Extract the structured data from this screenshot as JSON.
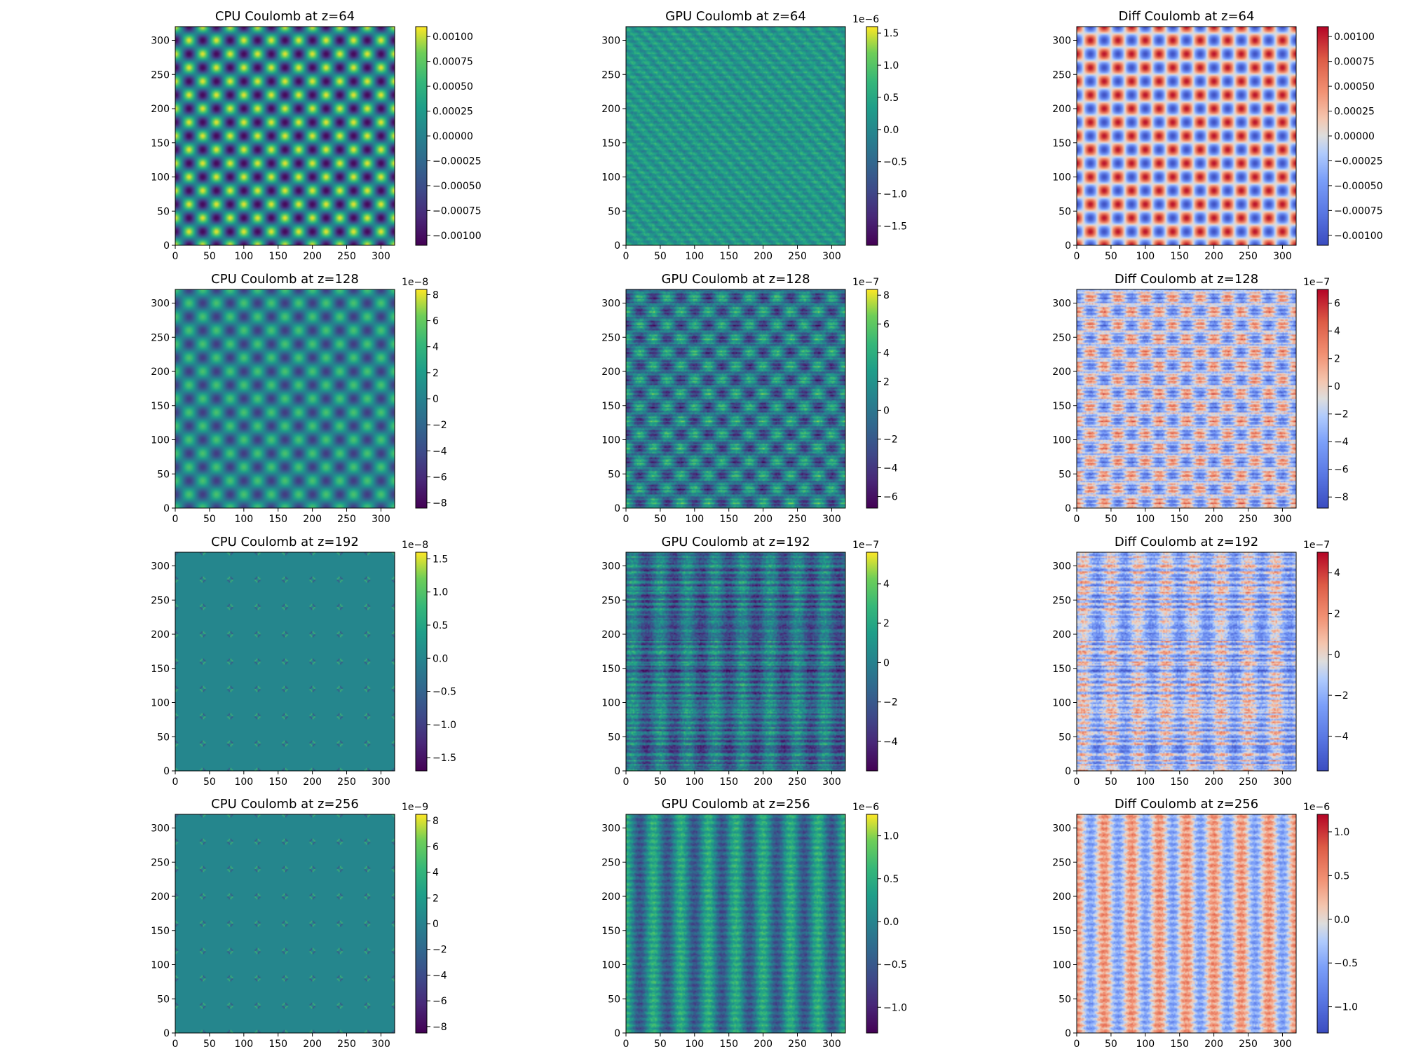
{
  "chart_data": [
    {
      "type": "heatmap",
      "title": "CPU Coulomb at z=64",
      "cmap": "viridis",
      "pattern": "cpu64",
      "xlim": [
        0,
        320
      ],
      "ylim": [
        0,
        320
      ],
      "xticks": [
        "0",
        "50",
        "100",
        "150",
        "200",
        "250",
        "300"
      ],
      "yticks": [
        "0",
        "50",
        "100",
        "150",
        "200",
        "250",
        "300"
      ],
      "colorbar": {
        "range": [
          -0.0011,
          0.0011
        ],
        "exponent_label": "",
        "ticks": [
          {
            "value": -0.001,
            "label": "−0.00100"
          },
          {
            "value": -0.00075,
            "label": "−0.00075"
          },
          {
            "value": -0.0005,
            "label": "−0.00050"
          },
          {
            "value": -0.00025,
            "label": "−0.00025"
          },
          {
            "value": 0,
            "label": "0.00000"
          },
          {
            "value": 0.00025,
            "label": "0.00025"
          },
          {
            "value": 0.0005,
            "label": "0.00050"
          },
          {
            "value": 0.00075,
            "label": "0.00075"
          },
          {
            "value": 0.001,
            "label": "0.00100"
          }
        ]
      }
    },
    {
      "type": "heatmap",
      "title": "GPU Coulomb at z=64",
      "cmap": "viridis",
      "pattern": "gpu64",
      "xlim": [
        0,
        320
      ],
      "ylim": [
        0,
        320
      ],
      "xticks": [
        "0",
        "50",
        "100",
        "150",
        "200",
        "250",
        "300"
      ],
      "yticks": [
        "0",
        "50",
        "100",
        "150",
        "200",
        "250",
        "300"
      ],
      "colorbar": {
        "range": [
          -1.8,
          1.6
        ],
        "exponent_label": "1e−6",
        "ticks": [
          {
            "value": -1.5,
            "label": "−1.5"
          },
          {
            "value": -1.0,
            "label": "−1.0"
          },
          {
            "value": -0.5,
            "label": "−0.5"
          },
          {
            "value": 0,
            "label": "0.0"
          },
          {
            "value": 0.5,
            "label": "0.5"
          },
          {
            "value": 1.0,
            "label": "1.0"
          },
          {
            "value": 1.5,
            "label": "1.5"
          }
        ]
      }
    },
    {
      "type": "heatmap",
      "title": "Diff Coulomb at z=64",
      "cmap": "coolwarm",
      "pattern": "cpu64",
      "xlim": [
        0,
        320
      ],
      "ylim": [
        0,
        320
      ],
      "xticks": [
        "0",
        "50",
        "100",
        "150",
        "200",
        "250",
        "300"
      ],
      "yticks": [
        "0",
        "50",
        "100",
        "150",
        "200",
        "250",
        "300"
      ],
      "colorbar": {
        "range": [
          -0.0011,
          0.0011
        ],
        "exponent_label": "",
        "ticks": [
          {
            "value": -0.001,
            "label": "−0.00100"
          },
          {
            "value": -0.00075,
            "label": "−0.00075"
          },
          {
            "value": -0.0005,
            "label": "−0.00050"
          },
          {
            "value": -0.00025,
            "label": "−0.00025"
          },
          {
            "value": 0,
            "label": "0.00000"
          },
          {
            "value": 0.00025,
            "label": "0.00025"
          },
          {
            "value": 0.0005,
            "label": "0.00050"
          },
          {
            "value": 0.00075,
            "label": "0.00075"
          },
          {
            "value": 0.001,
            "label": "0.00100"
          }
        ]
      }
    },
    {
      "type": "heatmap",
      "title": "CPU Coulomb at z=128",
      "cmap": "viridis",
      "pattern": "cpu128",
      "xlim": [
        0,
        320
      ],
      "ylim": [
        0,
        320
      ],
      "xticks": [
        "0",
        "50",
        "100",
        "150",
        "200",
        "250",
        "300"
      ],
      "yticks": [
        "0",
        "50",
        "100",
        "150",
        "200",
        "250",
        "300"
      ],
      "colorbar": {
        "range": [
          -8.4,
          8.4
        ],
        "exponent_label": "1e−8",
        "ticks": [
          {
            "value": -8,
            "label": "−8"
          },
          {
            "value": -6,
            "label": "−6"
          },
          {
            "value": -4,
            "label": "−4"
          },
          {
            "value": -2,
            "label": "−2"
          },
          {
            "value": 0,
            "label": "0"
          },
          {
            "value": 2,
            "label": "2"
          },
          {
            "value": 4,
            "label": "4"
          },
          {
            "value": 6,
            "label": "6"
          },
          {
            "value": 8,
            "label": "8"
          }
        ]
      }
    },
    {
      "type": "heatmap",
      "title": "GPU Coulomb at z=128",
      "cmap": "viridis",
      "pattern": "gpu128",
      "xlim": [
        0,
        320
      ],
      "ylim": [
        0,
        320
      ],
      "xticks": [
        "0",
        "50",
        "100",
        "150",
        "200",
        "250",
        "300"
      ],
      "yticks": [
        "0",
        "50",
        "100",
        "150",
        "200",
        "250",
        "300"
      ],
      "colorbar": {
        "range": [
          -6.8,
          8.4
        ],
        "exponent_label": "1e−7",
        "ticks": [
          {
            "value": -6,
            "label": "−6"
          },
          {
            "value": -4,
            "label": "−4"
          },
          {
            "value": -2,
            "label": "−2"
          },
          {
            "value": 0,
            "label": "0"
          },
          {
            "value": 2,
            "label": "2"
          },
          {
            "value": 4,
            "label": "4"
          },
          {
            "value": 6,
            "label": "6"
          },
          {
            "value": 8,
            "label": "8"
          }
        ]
      }
    },
    {
      "type": "heatmap",
      "title": "Diff Coulomb at z=128",
      "cmap": "coolwarm",
      "pattern": "gpu128",
      "xlim": [
        0,
        320
      ],
      "ylim": [
        0,
        320
      ],
      "xticks": [
        "0",
        "50",
        "100",
        "150",
        "200",
        "250",
        "300"
      ],
      "yticks": [
        "0",
        "50",
        "100",
        "150",
        "200",
        "250",
        "300"
      ],
      "colorbar": {
        "range": [
          -8.8,
          7.0
        ],
        "exponent_label": "1e−7",
        "ticks": [
          {
            "value": -8,
            "label": "−8"
          },
          {
            "value": -6,
            "label": "−6"
          },
          {
            "value": -4,
            "label": "−4"
          },
          {
            "value": -2,
            "label": "−2"
          },
          {
            "value": 0,
            "label": "0"
          },
          {
            "value": 2,
            "label": "2"
          },
          {
            "value": 4,
            "label": "4"
          },
          {
            "value": 6,
            "label": "6"
          }
        ]
      }
    },
    {
      "type": "heatmap",
      "title": "CPU Coulomb at z=192",
      "cmap": "viridis",
      "pattern": "cpu192",
      "xlim": [
        0,
        320
      ],
      "ylim": [
        0,
        320
      ],
      "xticks": [
        "0",
        "50",
        "100",
        "150",
        "200",
        "250",
        "300"
      ],
      "yticks": [
        "0",
        "50",
        "100",
        "150",
        "200",
        "250",
        "300"
      ],
      "colorbar": {
        "range": [
          -1.7,
          1.6
        ],
        "exponent_label": "1e−8",
        "ticks": [
          {
            "value": -1.5,
            "label": "−1.5"
          },
          {
            "value": -1.0,
            "label": "−1.0"
          },
          {
            "value": -0.5,
            "label": "−0.5"
          },
          {
            "value": 0,
            "label": "0.0"
          },
          {
            "value": 0.5,
            "label": "0.5"
          },
          {
            "value": 1.0,
            "label": "1.0"
          },
          {
            "value": 1.5,
            "label": "1.5"
          }
        ]
      }
    },
    {
      "type": "heatmap",
      "title": "GPU Coulomb at z=192",
      "cmap": "viridis",
      "pattern": "gpu192",
      "xlim": [
        0,
        320
      ],
      "ylim": [
        0,
        320
      ],
      "xticks": [
        "0",
        "50",
        "100",
        "150",
        "200",
        "250",
        "300"
      ],
      "yticks": [
        "0",
        "50",
        "100",
        "150",
        "200",
        "250",
        "300"
      ],
      "colorbar": {
        "range": [
          -5.5,
          5.6
        ],
        "exponent_label": "1e−7",
        "ticks": [
          {
            "value": -4,
            "label": "−4"
          },
          {
            "value": -2,
            "label": "−2"
          },
          {
            "value": 0,
            "label": "0"
          },
          {
            "value": 2,
            "label": "2"
          },
          {
            "value": 4,
            "label": "4"
          }
        ]
      }
    },
    {
      "type": "heatmap",
      "title": "Diff Coulomb at z=192",
      "cmap": "coolwarm",
      "pattern": "gpu192",
      "xlim": [
        0,
        320
      ],
      "ylim": [
        0,
        320
      ],
      "xticks": [
        "0",
        "50",
        "100",
        "150",
        "200",
        "250",
        "300"
      ],
      "yticks": [
        "0",
        "50",
        "100",
        "150",
        "200",
        "250",
        "300"
      ],
      "colorbar": {
        "range": [
          -5.7,
          5.0
        ],
        "exponent_label": "1e−7",
        "ticks": [
          {
            "value": -4,
            "label": "−4"
          },
          {
            "value": -2,
            "label": "−2"
          },
          {
            "value": 0,
            "label": "0"
          },
          {
            "value": 2,
            "label": "2"
          },
          {
            "value": 4,
            "label": "4"
          }
        ]
      }
    },
    {
      "type": "heatmap",
      "title": "CPU Coulomb at z=256",
      "cmap": "viridis",
      "pattern": "cpu256",
      "xlim": [
        0,
        320
      ],
      "ylim": [
        0,
        320
      ],
      "xticks": [
        "0",
        "50",
        "100",
        "150",
        "200",
        "250",
        "300"
      ],
      "yticks": [
        "0",
        "50",
        "100",
        "150",
        "200",
        "250",
        "300"
      ],
      "colorbar": {
        "range": [
          -8.5,
          8.5
        ],
        "exponent_label": "1e−9",
        "ticks": [
          {
            "value": -8,
            "label": "−8"
          },
          {
            "value": -6,
            "label": "−6"
          },
          {
            "value": -4,
            "label": "−4"
          },
          {
            "value": -2,
            "label": "−2"
          },
          {
            "value": 0,
            "label": "0"
          },
          {
            "value": 2,
            "label": "2"
          },
          {
            "value": 4,
            "label": "4"
          },
          {
            "value": 6,
            "label": "6"
          },
          {
            "value": 8,
            "label": "8"
          }
        ]
      }
    },
    {
      "type": "heatmap",
      "title": "GPU Coulomb at z=256",
      "cmap": "viridis",
      "pattern": "gpu256",
      "xlim": [
        0,
        320
      ],
      "ylim": [
        0,
        320
      ],
      "xticks": [
        "0",
        "50",
        "100",
        "150",
        "200",
        "250",
        "300"
      ],
      "yticks": [
        "0",
        "50",
        "100",
        "150",
        "200",
        "250",
        "300"
      ],
      "colorbar": {
        "range": [
          -1.3,
          1.25
        ],
        "exponent_label": "1e−6",
        "ticks": [
          {
            "value": -1.0,
            "label": "−1.0"
          },
          {
            "value": -0.5,
            "label": "−0.5"
          },
          {
            "value": 0,
            "label": "0.0"
          },
          {
            "value": 0.5,
            "label": "0.5"
          },
          {
            "value": 1.0,
            "label": "1.0"
          }
        ]
      }
    },
    {
      "type": "heatmap",
      "title": "Diff Coulomb at z=256",
      "cmap": "coolwarm",
      "pattern": "gpu256",
      "xlim": [
        0,
        320
      ],
      "ylim": [
        0,
        320
      ],
      "xticks": [
        "0",
        "50",
        "100",
        "150",
        "200",
        "250",
        "300"
      ],
      "yticks": [
        "0",
        "50",
        "100",
        "150",
        "200",
        "250",
        "300"
      ],
      "colorbar": {
        "range": [
          -1.3,
          1.2
        ],
        "exponent_label": "1e−6",
        "ticks": [
          {
            "value": -1.0,
            "label": "−1.0"
          },
          {
            "value": -0.5,
            "label": "−0.5"
          },
          {
            "value": 0,
            "label": "0.0"
          },
          {
            "value": 0.5,
            "label": "0.5"
          },
          {
            "value": 1.0,
            "label": "1.0"
          }
        ]
      }
    }
  ]
}
